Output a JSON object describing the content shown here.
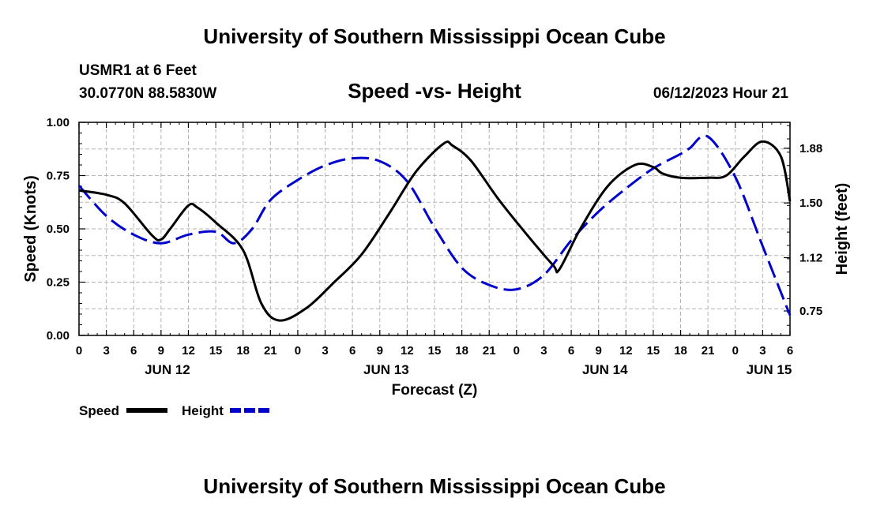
{
  "header": {
    "title": "University of Southern Mississippi Ocean Cube",
    "station": "USMR1 at 6 Feet",
    "location": "30.0770N  88.5830W",
    "date": "06/12/2023 Hour 21",
    "footer_title": "University of Southern Mississippi Ocean Cube"
  },
  "colors": {
    "speed": "#000000",
    "height": "#0000cc",
    "grid": "#b4b4b4"
  },
  "chart_data": {
    "type": "line",
    "title": "Speed -vs- Height",
    "xlabel": "Forecast (Z)",
    "ylabel": "Speed (Knots)",
    "y2label": "Height (feet)",
    "ylim": [
      0,
      1
    ],
    "y2lim": [
      0.58,
      2.06
    ],
    "xlim": [
      0,
      78
    ],
    "yticks": [
      "0.00",
      "0.25",
      "0.50",
      "0.75",
      "1.00"
    ],
    "y2ticks": [
      "0.75",
      "1.12",
      "1.50",
      "1.88"
    ],
    "y2tick_values": [
      0.75,
      1.12,
      1.5,
      1.88
    ],
    "xtick_labels": [
      "0",
      "3",
      "6",
      "9",
      "12",
      "15",
      "18",
      "21",
      "0",
      "3",
      "6",
      "9",
      "12",
      "15",
      "18",
      "21",
      "0",
      "3",
      "6",
      "9",
      "12",
      "15",
      "18",
      "21",
      "0",
      "3",
      "6"
    ],
    "day_labels": [
      {
        "label": "JUN 12",
        "hour": 9.7
      },
      {
        "label": "JUN 13",
        "hour": 33.7
      },
      {
        "label": "JUN 14",
        "hour": 57.7
      },
      {
        "label": "JUN 15",
        "hour": 75.7
      }
    ],
    "legend": [
      {
        "name": "Speed",
        "style": "solid"
      },
      {
        "name": "Height",
        "style": "dashed"
      }
    ],
    "series": [
      {
        "name": "Speed",
        "axis": "left",
        "x": [
          0,
          3,
          5,
          8,
          9,
          10,
          12,
          13,
          15,
          18,
          20,
          22,
          25,
          28,
          31,
          34,
          37,
          40,
          41,
          43,
          46,
          49,
          52,
          52.7,
          55,
          58,
          61,
          63,
          64,
          66,
          69,
          71,
          73,
          75,
          77,
          78
        ],
        "y": [
          0.68,
          0.66,
          0.62,
          0.47,
          0.45,
          0.5,
          0.61,
          0.6,
          0.53,
          0.4,
          0.15,
          0.07,
          0.13,
          0.25,
          0.38,
          0.57,
          0.77,
          0.9,
          0.89,
          0.82,
          0.64,
          0.48,
          0.33,
          0.31,
          0.5,
          0.7,
          0.8,
          0.79,
          0.76,
          0.74,
          0.74,
          0.75,
          0.84,
          0.91,
          0.84,
          0.63
        ]
      },
      {
        "name": "Height",
        "axis": "right",
        "x": [
          0,
          3,
          6,
          9,
          12,
          15,
          17,
          19,
          21,
          24,
          27,
          30,
          33,
          36,
          39,
          42,
          45,
          48,
          51,
          54,
          57,
          60,
          63,
          66,
          67,
          69,
          72,
          75,
          78
        ],
        "y": [
          1.62,
          1.41,
          1.28,
          1.22,
          1.28,
          1.3,
          1.22,
          1.32,
          1.52,
          1.66,
          1.76,
          1.81,
          1.79,
          1.65,
          1.33,
          1.05,
          0.93,
          0.9,
          1.0,
          1.24,
          1.44,
          1.6,
          1.74,
          1.84,
          1.88,
          1.96,
          1.68,
          1.2,
          0.72
        ]
      }
    ]
  }
}
